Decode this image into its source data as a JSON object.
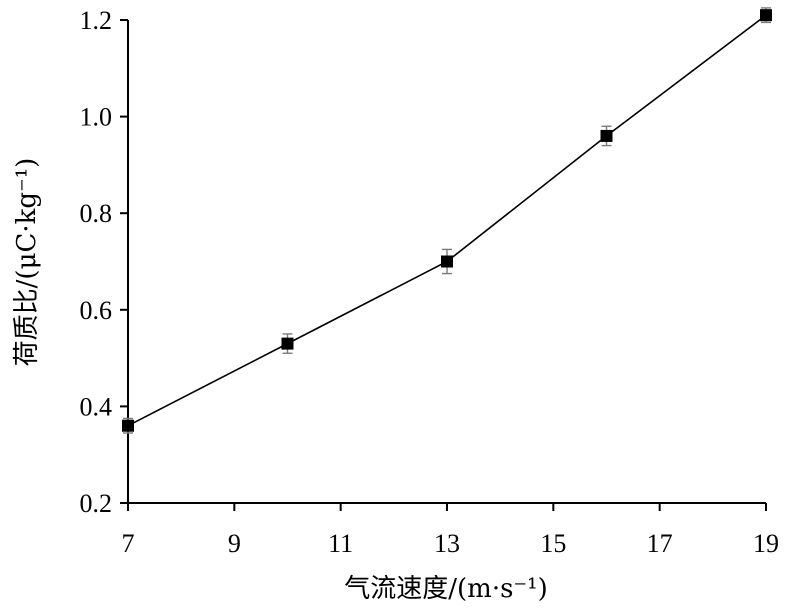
{
  "chart_data": {
    "type": "line",
    "xlabel": "气流速度/(m·s⁻¹)",
    "ylabel": "荷质比/(μC·kg⁻¹)",
    "xlim": [
      7,
      19
    ],
    "ylim": [
      0.2,
      1.2
    ],
    "xticks": [
      7,
      9,
      11,
      13,
      15,
      17,
      19
    ],
    "yticks": [
      0.2,
      0.4,
      0.6,
      0.8,
      1.0,
      1.2
    ],
    "xtick_labels": [
      "7",
      "9",
      "11",
      "13",
      "15",
      "17",
      "19"
    ],
    "ytick_labels": [
      "0.2",
      "0.4",
      "0.6",
      "0.8",
      "1.0",
      "1.2"
    ],
    "marker": "square",
    "grid": false,
    "series": [
      {
        "x": [
          7,
          10,
          13,
          16,
          19
        ],
        "y": [
          0.36,
          0.53,
          0.7,
          0.96,
          1.21
        ],
        "error": [
          0.015,
          0.02,
          0.025,
          0.02,
          0.015
        ]
      }
    ]
  }
}
